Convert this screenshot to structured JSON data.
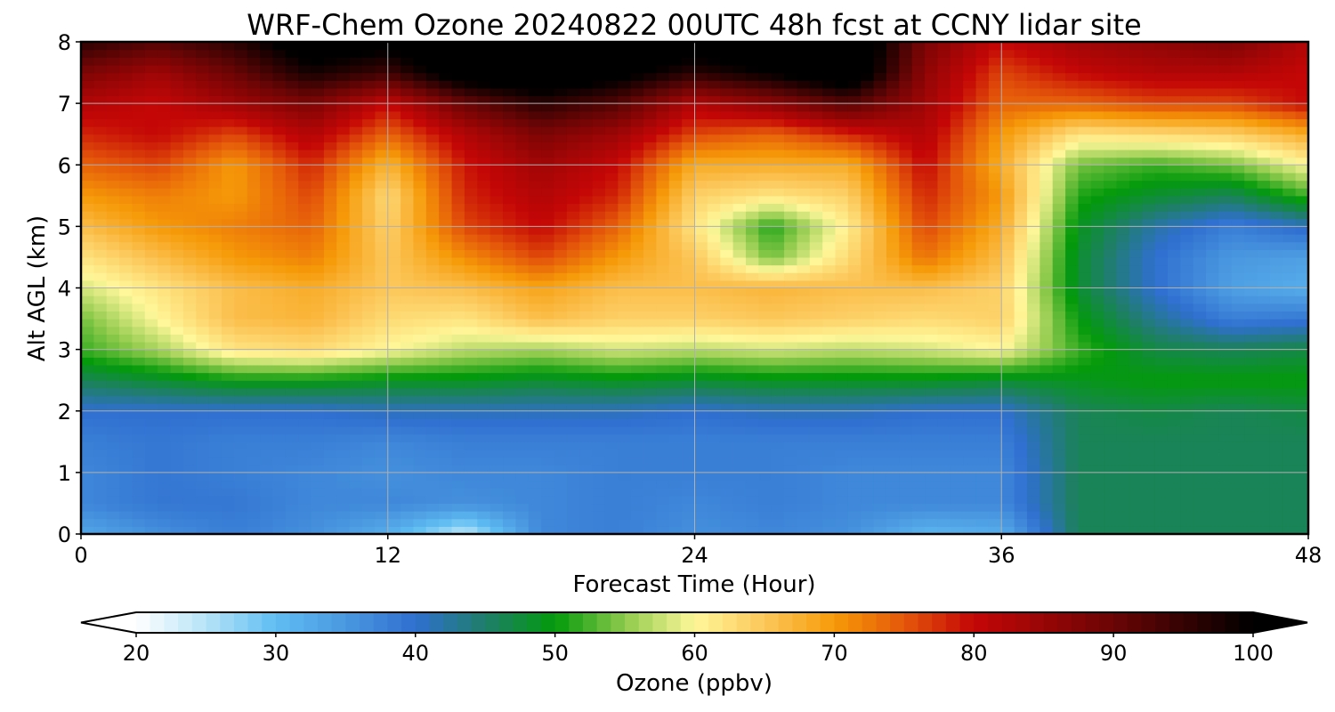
{
  "chart_data": {
    "type": "heatmap",
    "title": "WRF-Chem Ozone  20240822 00UTC 48h fcst at CCNY lidar site",
    "xlabel": "Forecast Time (Hour)",
    "ylabel": "Alt AGL (km)",
    "xlim": [
      0,
      48
    ],
    "ylim": [
      0,
      8
    ],
    "x_ticks": [
      0,
      12,
      24,
      36,
      48
    ],
    "y_ticks": [
      0,
      1,
      2,
      3,
      4,
      5,
      6,
      7,
      8
    ],
    "grid": true,
    "x": [
      0,
      3,
      6,
      9,
      12,
      15,
      18,
      21,
      24,
      27,
      30,
      33,
      36,
      39,
      42,
      45,
      48
    ],
    "y": [
      0,
      0.5,
      1,
      1.5,
      2,
      2.5,
      3,
      3.5,
      4,
      4.5,
      5,
      5.5,
      6,
      6.5,
      7,
      7.5,
      8
    ],
    "z": [
      [
        33,
        36,
        38,
        36,
        32,
        24,
        37,
        38,
        36,
        37,
        36,
        31,
        32,
        46,
        46,
        46,
        46
      ],
      [
        37,
        39,
        39,
        37,
        37,
        36,
        37,
        38,
        37,
        38,
        37,
        37,
        37,
        46,
        46,
        46,
        46
      ],
      [
        37,
        39,
        38,
        37,
        36,
        37,
        37,
        38,
        38,
        38,
        37,
        37,
        37,
        46,
        46,
        46,
        46
      ],
      [
        38,
        39,
        38,
        38,
        37,
        38,
        38,
        38,
        38,
        38,
        38,
        38,
        38,
        46,
        46,
        46,
        46
      ],
      [
        40,
        40,
        40,
        40,
        41,
        41,
        41,
        41,
        40,
        41,
        41,
        40,
        40,
        46,
        47,
        46,
        47
      ],
      [
        46,
        48,
        50,
        50,
        49,
        49,
        48,
        49,
        48,
        49,
        49,
        49,
        48,
        49,
        50,
        50,
        50
      ],
      [
        52,
        56,
        62,
        63,
        60,
        57,
        56,
        58,
        57,
        58,
        57,
        58,
        60,
        52,
        47,
        46,
        47
      ],
      [
        54,
        60,
        66,
        67,
        63,
        62,
        66,
        64,
        64,
        65,
        64,
        63,
        64,
        50,
        43,
        38,
        39
      ],
      [
        58,
        62,
        66,
        68,
        65,
        66,
        69,
        66,
        66,
        67,
        66,
        66,
        64,
        48,
        40,
        34,
        32
      ],
      [
        62,
        66,
        70,
        72,
        65,
        71,
        76,
        70,
        65,
        54,
        63,
        73,
        66,
        48,
        40,
        35,
        34
      ],
      [
        66,
        70,
        72,
        74,
        64,
        76,
        80,
        74,
        62,
        51,
        61,
        76,
        68,
        49,
        42,
        38,
        41
      ],
      [
        70,
        72,
        70,
        76,
        63,
        78,
        82,
        78,
        64,
        62,
        64,
        78,
        70,
        51,
        48,
        46,
        52
      ],
      [
        74,
        76,
        70,
        78,
        67,
        79,
        84,
        80,
        68,
        68,
        68,
        80,
        68,
        54,
        52,
        54,
        60
      ],
      [
        78,
        80,
        76,
        82,
        74,
        82,
        88,
        84,
        76,
        74,
        78,
        82,
        70,
        62,
        63,
        64,
        68
      ],
      [
        82,
        80,
        84,
        88,
        80,
        90,
        96,
        92,
        82,
        86,
        92,
        84,
        74,
        74,
        76,
        76,
        80
      ],
      [
        88,
        84,
        90,
        98,
        94,
        104,
        106,
        102,
        96,
        100,
        106,
        86,
        76,
        80,
        82,
        82,
        80
      ],
      [
        96,
        92,
        96,
        104,
        102,
        108,
        108,
        106,
        104,
        106,
        108,
        88,
        80,
        84,
        86,
        88,
        82
      ]
    ],
    "colorbar": {
      "label": "Ozone  (ppbv)",
      "min": 20,
      "max": 100,
      "ticks": [
        20,
        30,
        40,
        50,
        60,
        70,
        80,
        90,
        100
      ],
      "extend": "both",
      "colors": [
        {
          "v": 20,
          "c": "#ffffff"
        },
        {
          "v": 25,
          "c": "#b6e4f8"
        },
        {
          "v": 30,
          "c": "#5fbdf2"
        },
        {
          "v": 35,
          "c": "#4a98e0"
        },
        {
          "v": 40,
          "c": "#2f6fd0"
        },
        {
          "v": 45,
          "c": "#1f7e6a"
        },
        {
          "v": 50,
          "c": "#039a0b"
        },
        {
          "v": 55,
          "c": "#8fca4c"
        },
        {
          "v": 60,
          "c": "#fff79a"
        },
        {
          "v": 65,
          "c": "#fcc75a"
        },
        {
          "v": 70,
          "c": "#f69a08"
        },
        {
          "v": 75,
          "c": "#e4570a"
        },
        {
          "v": 80,
          "c": "#c40606"
        },
        {
          "v": 90,
          "c": "#6a0505"
        },
        {
          "v": 100,
          "c": "#000000"
        }
      ]
    }
  }
}
